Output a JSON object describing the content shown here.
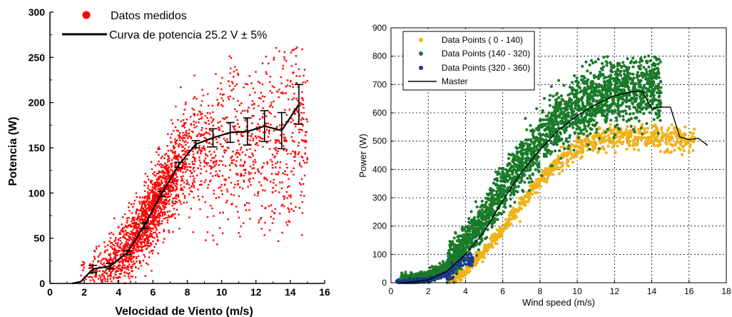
{
  "chart_data": [
    {
      "type": "scatter",
      "title": "",
      "xlabel": "Velocidad de Viento (m/s)",
      "ylabel": "Potencia (W)",
      "xlim": [
        0,
        16
      ],
      "ylim": [
        0,
        300
      ],
      "xticks": [
        "0",
        "2",
        "4",
        "6",
        "8",
        "10",
        "12",
        "14",
        "16"
      ],
      "yticks": [
        "0",
        "50",
        "100",
        "150",
        "200",
        "250",
        "300"
      ],
      "grid": false,
      "legend_position": "top-left",
      "colors": {
        "points": "#ff0000",
        "curve": "#000000"
      },
      "series": [
        {
          "name": "Datos medidos",
          "kind": "scatter",
          "color": "#ff0000",
          "profile": {
            "x": [
              1.5,
              2.5,
              3.5,
              4.5,
              5.5,
              6.5,
              7.5,
              8.5,
              9.5,
              10.5,
              11.5,
              12.5,
              13.5,
              14.5
            ],
            "y": [
              2,
              12,
              20,
              35,
              65,
              100,
              130,
              152,
              160,
              165,
              168,
              172,
              170,
              198
            ]
          }
        },
        {
          "name": "Curva de potencia 25.2 V ± 5%",
          "kind": "line_with_error_bars",
          "color": "#000000",
          "x": [
            1.3,
            1.8,
            2.5,
            3.5,
            4.5,
            5.5,
            6.5,
            7.5,
            8.5,
            9.5,
            10.5,
            11.5,
            12.5,
            13.5,
            14.5
          ],
          "y": [
            0,
            2,
            16,
            19,
            34,
            64,
            99,
            131,
            154,
            161,
            167,
            168,
            174,
            169,
            198
          ],
          "error": [
            0,
            0,
            4,
            3,
            2,
            3,
            3,
            3,
            4,
            10,
            11,
            15,
            17,
            20,
            22
          ]
        }
      ]
    },
    {
      "type": "scatter",
      "title": "",
      "xlabel": "Wind speed (m/s)",
      "ylabel": "Power (W)",
      "xlim": [
        0,
        18
      ],
      "ylim": [
        0,
        900
      ],
      "xticks": [
        "0",
        "2",
        "4",
        "6",
        "8",
        "10",
        "12",
        "14",
        "16",
        "18"
      ],
      "yticks": [
        "0",
        "100",
        "200",
        "300",
        "400",
        "500",
        "600",
        "700",
        "800",
        "900"
      ],
      "grid": true,
      "legend_position": "top-left",
      "colors": {
        "orange": "#f0b21a",
        "green": "#1a7a2a",
        "blue": "#1a3a8c",
        "master": "#000000"
      },
      "series": [
        {
          "name": "Data Points ( 0 - 140)",
          "kind": "scatter",
          "color": "#f0b21a",
          "profile": {
            "x": [
              3,
              4,
              5,
              6,
              7,
              8,
              9,
              10,
              11,
              12,
              13,
              14,
              15,
              16
            ],
            "y": [
              10,
              40,
              110,
              190,
              280,
              360,
              430,
              480,
              510,
              520,
              520,
              515,
              510,
              500
            ]
          }
        },
        {
          "name": "Data Points (140 - 320)",
          "kind": "scatter",
          "color": "#1a7a2a",
          "profile": {
            "x": [
              1,
              2,
              3,
              4,
              5,
              6,
              7,
              8,
              9,
              10,
              11,
              12,
              13,
              14
            ],
            "y": [
              10,
              20,
              60,
              140,
              230,
              330,
              420,
              500,
              570,
              620,
              650,
              670,
              690,
              700
            ]
          }
        },
        {
          "name": "Data Points (320 - 360)",
          "kind": "scatter",
          "color": "#1a3a8c",
          "profile": {
            "x": [
              0.5,
              1,
              2,
              3,
              4
            ],
            "y": [
              2,
              5,
              10,
              30,
              80
            ]
          }
        },
        {
          "name": "Master",
          "kind": "line",
          "color": "#000000",
          "x": [
            0.5,
            1,
            2,
            3,
            4,
            5,
            6,
            7,
            8,
            9,
            10,
            11,
            12,
            13,
            13.5,
            14,
            14.5,
            15,
            15.5,
            16,
            16.5,
            17
          ],
          "y": [
            0,
            2,
            10,
            40,
            100,
            180,
            290,
            390,
            470,
            540,
            590,
            630,
            660,
            675,
            675,
            615,
            620,
            620,
            515,
            505,
            510,
            485
          ]
        }
      ]
    }
  ]
}
